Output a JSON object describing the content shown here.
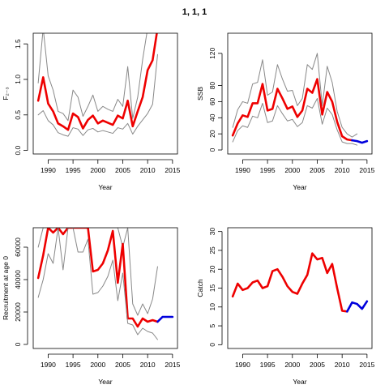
{
  "title": "1, 1, 1",
  "colors": {
    "estimate": "#ee0000",
    "bounds": "#888888",
    "projection": "#0000dd"
  },
  "chart_data": [
    {
      "type": "line",
      "id": "F",
      "xlabel": "Year",
      "ylabel": "F₂₋₃",
      "xlim": [
        1987,
        2016
      ],
      "ylim": [
        -0.05,
        1.65
      ],
      "xticks": [
        1990,
        1995,
        2000,
        2005,
        2010,
        2015
      ],
      "yticks": [
        0.0,
        0.5,
        1.0,
        1.5
      ],
      "ytick_labels": [
        "0.0",
        "0.5",
        "1.0",
        "1.5"
      ],
      "series": [
        {
          "role": "upper",
          "x": [
            1988,
            1989,
            1990,
            1991,
            1992,
            1993,
            1994,
            1995,
            1996,
            1997,
            1998,
            1999,
            2000,
            2001,
            2002,
            2003,
            2004,
            2005,
            2006,
            2007,
            2008,
            2009,
            2010,
            2011,
            2012
          ],
          "y": [
            0.95,
            1.72,
            1.05,
            0.85,
            0.55,
            0.52,
            0.42,
            0.85,
            0.75,
            0.48,
            0.62,
            0.78,
            0.55,
            0.62,
            0.58,
            0.55,
            0.72,
            0.62,
            1.18,
            0.45,
            0.75,
            1.28,
            1.72,
            1.72,
            1.72
          ]
        },
        {
          "role": "estimate",
          "x": [
            1988,
            1989,
            1990,
            1991,
            1992,
            1993,
            1994,
            1995,
            1996,
            1997,
            1998,
            1999,
            2000,
            2001,
            2002,
            2003,
            2004,
            2005,
            2006,
            2007,
            2008,
            2009,
            2010,
            2011,
            2012
          ],
          "y": [
            0.7,
            1.03,
            0.66,
            0.55,
            0.38,
            0.34,
            0.29,
            0.52,
            0.47,
            0.31,
            0.43,
            0.49,
            0.38,
            0.42,
            0.39,
            0.36,
            0.49,
            0.45,
            0.7,
            0.34,
            0.55,
            0.75,
            1.13,
            1.27,
            1.72
          ]
        },
        {
          "role": "lower",
          "x": [
            1988,
            1989,
            1990,
            1991,
            1992,
            1993,
            1994,
            1995,
            1996,
            1997,
            1998,
            1999,
            2000,
            2001,
            2002,
            2003,
            2004,
            2005,
            2006,
            2007,
            2008,
            2009,
            2010,
            2011,
            2012
          ],
          "y": [
            0.5,
            0.56,
            0.42,
            0.36,
            0.25,
            0.22,
            0.2,
            0.32,
            0.3,
            0.21,
            0.29,
            0.31,
            0.26,
            0.28,
            0.26,
            0.24,
            0.32,
            0.3,
            0.38,
            0.23,
            0.34,
            0.43,
            0.52,
            0.65,
            1.35
          ]
        }
      ]
    },
    {
      "type": "line",
      "id": "SSB",
      "xlabel": "Year",
      "ylabel": "SSB",
      "xlim": [
        1987,
        2016
      ],
      "ylim": [
        -5,
        145
      ],
      "xticks": [
        1990,
        1995,
        2000,
        2005,
        2010,
        2015
      ],
      "yticks": [
        0,
        20,
        40,
        60,
        80,
        120
      ],
      "ytick_labels": [
        "0",
        "20",
        "40",
        "60",
        "80",
        "120"
      ],
      "series": [
        {
          "role": "upper",
          "x": [
            1988,
            1989,
            1990,
            1991,
            1992,
            1993,
            1994,
            1995,
            1996,
            1997,
            1998,
            1999,
            2000,
            2001,
            2002,
            2003,
            2004,
            2005,
            2006,
            2007,
            2008,
            2009,
            2010,
            2011,
            2012,
            2013
          ],
          "y": [
            28,
            50,
            60,
            58,
            82,
            84,
            112,
            68,
            72,
            106,
            88,
            73,
            74,
            55,
            64,
            106,
            100,
            120,
            55,
            104,
            84,
            48,
            28,
            20,
            16,
            20
          ]
        },
        {
          "role": "estimate",
          "x": [
            1988,
            1989,
            1990,
            1991,
            1992,
            1993,
            1994,
            1995,
            1996,
            1997,
            1998,
            1999,
            2000,
            2001,
            2002,
            2003,
            2004,
            2005,
            2006,
            2007,
            2008,
            2009,
            2010,
            2011,
            2012
          ],
          "y": [
            18,
            33,
            43,
            41,
            58,
            58,
            82,
            49,
            51,
            76,
            64,
            51,
            54,
            41,
            49,
            76,
            71,
            88,
            44,
            72,
            60,
            35,
            17,
            13,
            12
          ]
        },
        {
          "role": "lower",
          "x": [
            1988,
            1989,
            1990,
            1991,
            1992,
            1993,
            1994,
            1995,
            1996,
            1997,
            1998,
            1999,
            2000,
            2001,
            2002,
            2003,
            2004,
            2005,
            2006,
            2007,
            2008,
            2009,
            2010,
            2011,
            2012,
            2013
          ],
          "y": [
            10,
            24,
            30,
            28,
            42,
            40,
            58,
            34,
            36,
            55,
            45,
            36,
            38,
            29,
            34,
            55,
            52,
            64,
            32,
            52,
            44,
            25,
            10,
            8,
            8,
            6
          ]
        },
        {
          "role": "projection",
          "x": [
            2012,
            2013,
            2014,
            2015
          ],
          "y": [
            12,
            11,
            9,
            11
          ]
        }
      ]
    },
    {
      "type": "line",
      "id": "Recruitment",
      "xlabel": "Year",
      "ylabel": "Recruitment at age 0",
      "xlim": [
        1987,
        2016
      ],
      "ylim": [
        -2500,
        72000
      ],
      "xticks": [
        1990,
        1995,
        2000,
        2005,
        2010,
        2015
      ],
      "yticks": [
        0,
        20000,
        40000,
        60000
      ],
      "ytick_labels": [
        "0",
        "20000",
        "40000",
        "60000"
      ],
      "series": [
        {
          "role": "upper",
          "x": [
            1988,
            1989,
            1990,
            1991,
            1992,
            1993,
            1994,
            1995,
            1996,
            1997,
            1998,
            1999,
            2000,
            2001,
            2002,
            2003,
            2004,
            2005,
            2006,
            2007,
            2008,
            2009,
            2010,
            2011,
            2012
          ],
          "y": [
            60000,
            72000,
            72000,
            72000,
            72000,
            72000,
            72000,
            72000,
            72000,
            72000,
            72000,
            72000,
            72000,
            72000,
            72000,
            72000,
            72000,
            60000,
            72000,
            25000,
            18000,
            25000,
            19000,
            28000,
            48000
          ]
        },
        {
          "role": "estimate",
          "x": [
            1988,
            1989,
            1990,
            1991,
            1992,
            1993,
            1994,
            1995,
            1996,
            1997,
            1998,
            1999,
            2000,
            2001,
            2002,
            2003,
            2004,
            2005,
            2006,
            2007,
            2008,
            2009,
            2010,
            2011,
            2012
          ],
          "y": [
            41000,
            55000,
            72000,
            69000,
            72000,
            68000,
            72000,
            72000,
            72000,
            72000,
            72000,
            45000,
            46000,
            50000,
            58000,
            70000,
            38000,
            62000,
            16000,
            16000,
            11000,
            16000,
            14000,
            15000,
            14000
          ]
        },
        {
          "role": "lower",
          "x": [
            1988,
            1989,
            1990,
            1991,
            1992,
            1993,
            1994,
            1995,
            1996,
            1997,
            1998,
            1999,
            2000,
            2001,
            2002,
            2003,
            2004,
            2005,
            2006,
            2007,
            2008,
            2009,
            2010,
            2011,
            2012
          ],
          "y": [
            29000,
            40000,
            56000,
            50000,
            72000,
            46000,
            72000,
            72000,
            57000,
            57000,
            65000,
            31000,
            32000,
            36000,
            42000,
            52000,
            27000,
            44000,
            13000,
            12000,
            6000,
            10000,
            8000,
            7000,
            3000
          ]
        },
        {
          "role": "projection",
          "x": [
            2012,
            2013,
            2014,
            2015
          ],
          "y": [
            14000,
            17000,
            17000,
            17000
          ]
        }
      ]
    },
    {
      "type": "line",
      "id": "Catch",
      "xlabel": "Year",
      "ylabel": "Catch",
      "xlim": [
        1987,
        2016
      ],
      "ylim": [
        -1,
        31
      ],
      "xticks": [
        1990,
        1995,
        2000,
        2005,
        2010,
        2015
      ],
      "yticks": [
        0,
        5,
        10,
        15,
        20,
        25,
        30
      ],
      "ytick_labels": [
        "0",
        "5",
        "10",
        "15",
        "20",
        "25",
        "30"
      ],
      "series": [
        {
          "role": "estimate",
          "x": [
            1988,
            1989,
            1990,
            1991,
            1992,
            1993,
            1994,
            1995,
            1996,
            1997,
            1998,
            1999,
            2000,
            2001,
            2002,
            2003,
            2004,
            2005,
            2006,
            2007,
            2008,
            2009,
            2010,
            2011
          ],
          "y": [
            12.8,
            16.2,
            14.5,
            15.0,
            16.5,
            17.0,
            15.0,
            15.5,
            19.5,
            20.0,
            18.0,
            15.5,
            14.0,
            13.5,
            16.2,
            18.5,
            24.2,
            22.6,
            23.0,
            19.0,
            21.4,
            15.0,
            9.0,
            8.8
          ]
        },
        {
          "role": "projection",
          "x": [
            2011,
            2012,
            2013,
            2014,
            2015
          ],
          "y": [
            8.8,
            11.2,
            10.8,
            9.5,
            11.5
          ]
        }
      ]
    }
  ]
}
